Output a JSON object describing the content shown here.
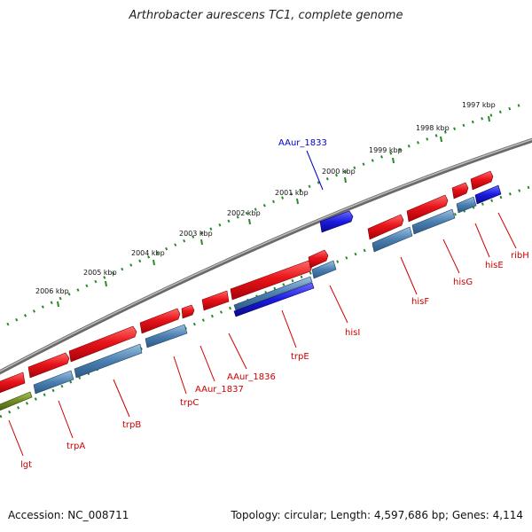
{
  "title": "Arthrobacter aurescens TC1, complete genome",
  "accession": "Accession: NC_008711",
  "summary": "Topology: circular; Length: 4,597,686 bp; Genes: 4,114",
  "kbp_labels": [
    "1997 kbp",
    "1998 kbp",
    "1999 kbp",
    "2000 kbp",
    "2001 kbp",
    "2002 kbp",
    "2003 kbp",
    "2004 kbp",
    "2005 kbp",
    "2006 kbp"
  ],
  "gene_labels": [
    {
      "text": "AAur_1833",
      "color": "#0000cc"
    },
    {
      "text": "ribH",
      "color": "#cc0000"
    },
    {
      "text": "hisE",
      "color": "#cc0000"
    },
    {
      "text": "hisG",
      "color": "#cc0000"
    },
    {
      "text": "hisF",
      "color": "#cc0000"
    },
    {
      "text": "hisI",
      "color": "#cc0000"
    },
    {
      "text": "trpE",
      "color": "#cc0000"
    },
    {
      "text": "AAur_1836",
      "color": "#cc0000"
    },
    {
      "text": "AAur_1837",
      "color": "#cc0000"
    },
    {
      "text": "trpC",
      "color": "#cc0000"
    },
    {
      "text": "trpB",
      "color": "#cc0000"
    },
    {
      "text": "trpA",
      "color": "#cc0000"
    },
    {
      "text": "lgt",
      "color": "#cc0000"
    }
  ],
  "colors": {
    "forward_cds": "#e8141a",
    "reverse_cds": "#4a7fb0",
    "rna_cds": "#1a1acc",
    "other_feature": "#6b8a1e",
    "backbone": "#888888",
    "ticks": "#2a8a2a"
  }
}
